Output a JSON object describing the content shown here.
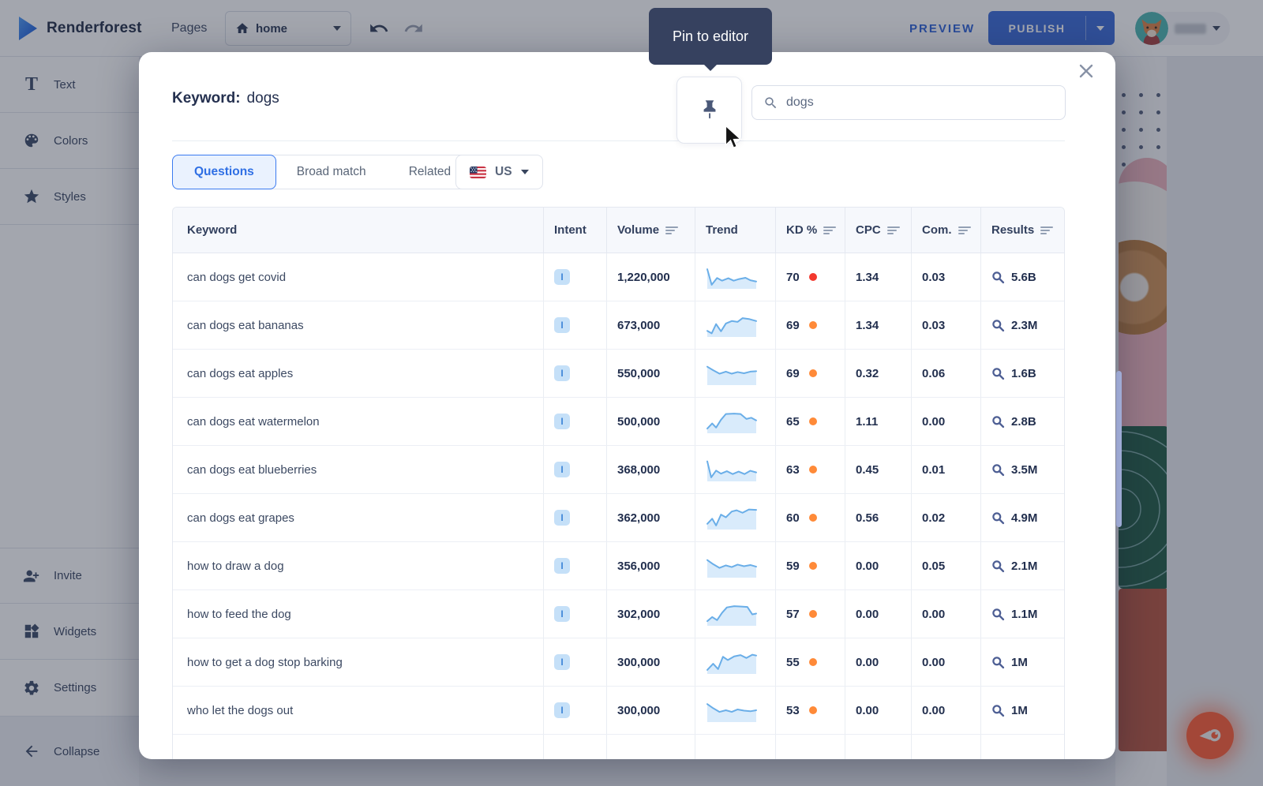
{
  "colors": {
    "kd_red": "#f3382e",
    "kd_orange": "#ff8a38",
    "spark_stroke": "#6aaee8",
    "spark_fill": "#d9ebfb",
    "accent_blue": "#3a6ad8",
    "semrush_orange": "#ff5c35"
  },
  "topbar": {
    "brand": "Renderforest",
    "pages_label": "Pages",
    "page_selector_value": "home",
    "preview_label": "PREVIEW",
    "publish_label": "PUBLISH"
  },
  "sidebar": {
    "items": [
      {
        "label": "Text"
      },
      {
        "label": "Colors"
      },
      {
        "label": "Styles"
      }
    ],
    "bottom_items": [
      {
        "label": "Invite"
      },
      {
        "label": "Widgets"
      },
      {
        "label": "Settings"
      }
    ],
    "collapse_label": "Collapse"
  },
  "modal": {
    "tooltip": "Pin to editor",
    "title_label": "Keyword:",
    "title_value": "dogs",
    "search_value": "dogs",
    "tabs": [
      {
        "label": "Questions",
        "active": true
      },
      {
        "label": "Broad match",
        "active": false
      },
      {
        "label": "Related",
        "active": false
      }
    ],
    "region": "US",
    "table": {
      "columns": [
        {
          "label": "Keyword",
          "sortable": false
        },
        {
          "label": "Intent",
          "sortable": false
        },
        {
          "label": "Volume",
          "sortable": true
        },
        {
          "label": "Trend",
          "sortable": false
        },
        {
          "label": "KD %",
          "sortable": true
        },
        {
          "label": "CPC",
          "sortable": true
        },
        {
          "label": "Com.",
          "sortable": true
        },
        {
          "label": "Results",
          "sortable": true
        }
      ],
      "rows": [
        {
          "keyword": "can dogs get covid",
          "intent": "I",
          "volume": "1,220,000",
          "kd": "70",
          "kd_level": "red",
          "cpc": "1.34",
          "com": "0.03",
          "results": "5.6B",
          "trend": [
            [
              0,
              12
            ],
            [
              9,
              88
            ],
            [
              20,
              55
            ],
            [
              30,
              68
            ],
            [
              43,
              56
            ],
            [
              54,
              68
            ],
            [
              65,
              60
            ],
            [
              78,
              54
            ],
            [
              88,
              66
            ],
            [
              100,
              72
            ]
          ]
        },
        {
          "keyword": "can dogs eat bananas",
          "intent": "I",
          "volume": "673,000",
          "kd": "69",
          "kd_level": "orange",
          "cpc": "1.34",
          "com": "0.03",
          "results": "2.3M",
          "trend": [
            [
              0,
              78
            ],
            [
              9,
              90
            ],
            [
              18,
              45
            ],
            [
              28,
              80
            ],
            [
              38,
              42
            ],
            [
              50,
              30
            ],
            [
              62,
              34
            ],
            [
              72,
              16
            ],
            [
              85,
              20
            ],
            [
              100,
              30
            ]
          ]
        },
        {
          "keyword": "can dogs eat apples",
          "intent": "I",
          "volume": "550,000",
          "kd": "69",
          "kd_level": "orange",
          "cpc": "0.32",
          "com": "0.06",
          "results": "1.6B",
          "trend": [
            [
              0,
              18
            ],
            [
              12,
              35
            ],
            [
              25,
              52
            ],
            [
              38,
              42
            ],
            [
              50,
              52
            ],
            [
              62,
              44
            ],
            [
              75,
              50
            ],
            [
              88,
              42
            ],
            [
              100,
              40
            ]
          ]
        },
        {
          "keyword": "can dogs eat watermelon",
          "intent": "I",
          "volume": "500,000",
          "kd": "65",
          "kd_level": "orange",
          "cpc": "1.11",
          "com": "0.00",
          "results": "2.8B",
          "trend": [
            [
              0,
              85
            ],
            [
              10,
              60
            ],
            [
              18,
              80
            ],
            [
              28,
              42
            ],
            [
              38,
              14
            ],
            [
              55,
              12
            ],
            [
              68,
              14
            ],
            [
              80,
              38
            ],
            [
              90,
              32
            ],
            [
              100,
              45
            ]
          ]
        },
        {
          "keyword": "can dogs eat blueberries",
          "intent": "I",
          "volume": "368,000",
          "kd": "63",
          "kd_level": "orange",
          "cpc": "0.45",
          "com": "0.01",
          "results": "3.5M",
          "trend": [
            [
              0,
              10
            ],
            [
              8,
              88
            ],
            [
              18,
              55
            ],
            [
              28,
              70
            ],
            [
              40,
              58
            ],
            [
              52,
              72
            ],
            [
              64,
              60
            ],
            [
              76,
              72
            ],
            [
              88,
              56
            ],
            [
              100,
              64
            ]
          ]
        },
        {
          "keyword": "can dogs eat grapes",
          "intent": "I",
          "volume": "362,000",
          "kd": "60",
          "kd_level": "orange",
          "cpc": "0.56",
          "com": "0.02",
          "results": "4.9M",
          "trend": [
            [
              0,
              80
            ],
            [
              10,
              55
            ],
            [
              18,
              88
            ],
            [
              28,
              35
            ],
            [
              38,
              48
            ],
            [
              50,
              20
            ],
            [
              60,
              14
            ],
            [
              72,
              26
            ],
            [
              85,
              10
            ],
            [
              100,
              12
            ]
          ]
        },
        {
          "keyword": "how to draw a dog",
          "intent": "I",
          "volume": "356,000",
          "kd": "59",
          "kd_level": "orange",
          "cpc": "0.00",
          "com": "0.05",
          "results": "2.1M",
          "trend": [
            [
              0,
              22
            ],
            [
              12,
              42
            ],
            [
              25,
              60
            ],
            [
              38,
              48
            ],
            [
              50,
              56
            ],
            [
              62,
              44
            ],
            [
              75,
              52
            ],
            [
              88,
              46
            ],
            [
              100,
              54
            ]
          ]
        },
        {
          "keyword": "how to feed the dog",
          "intent": "I",
          "volume": "302,000",
          "kd": "57",
          "kd_level": "orange",
          "cpc": "0.00",
          "com": "0.00",
          "results": "1.1M",
          "trend": [
            [
              0,
              85
            ],
            [
              10,
              65
            ],
            [
              20,
              80
            ],
            [
              30,
              45
            ],
            [
              40,
              18
            ],
            [
              55,
              12
            ],
            [
              70,
              14
            ],
            [
              82,
              16
            ],
            [
              92,
              52
            ],
            [
              100,
              48
            ]
          ]
        },
        {
          "keyword": "how to get a dog stop barking",
          "intent": "I",
          "volume": "300,000",
          "kd": "55",
          "kd_level": "orange",
          "cpc": "0.00",
          "com": "0.00",
          "results": "1M",
          "trend": [
            [
              0,
              88
            ],
            [
              12,
              58
            ],
            [
              22,
              84
            ],
            [
              32,
              24
            ],
            [
              42,
              40
            ],
            [
              55,
              22
            ],
            [
              68,
              16
            ],
            [
              80,
              30
            ],
            [
              92,
              14
            ],
            [
              100,
              18
            ]
          ]
        },
        {
          "keyword": "who let the dogs out",
          "intent": "I",
          "volume": "300,000",
          "kd": "53",
          "kd_level": "orange",
          "cpc": "0.00",
          "com": "0.00",
          "results": "1M",
          "trend": [
            [
              0,
              20
            ],
            [
              12,
              40
            ],
            [
              25,
              58
            ],
            [
              38,
              50
            ],
            [
              50,
              58
            ],
            [
              62,
              46
            ],
            [
              75,
              52
            ],
            [
              88,
              55
            ],
            [
              100,
              50
            ]
          ]
        }
      ]
    }
  }
}
